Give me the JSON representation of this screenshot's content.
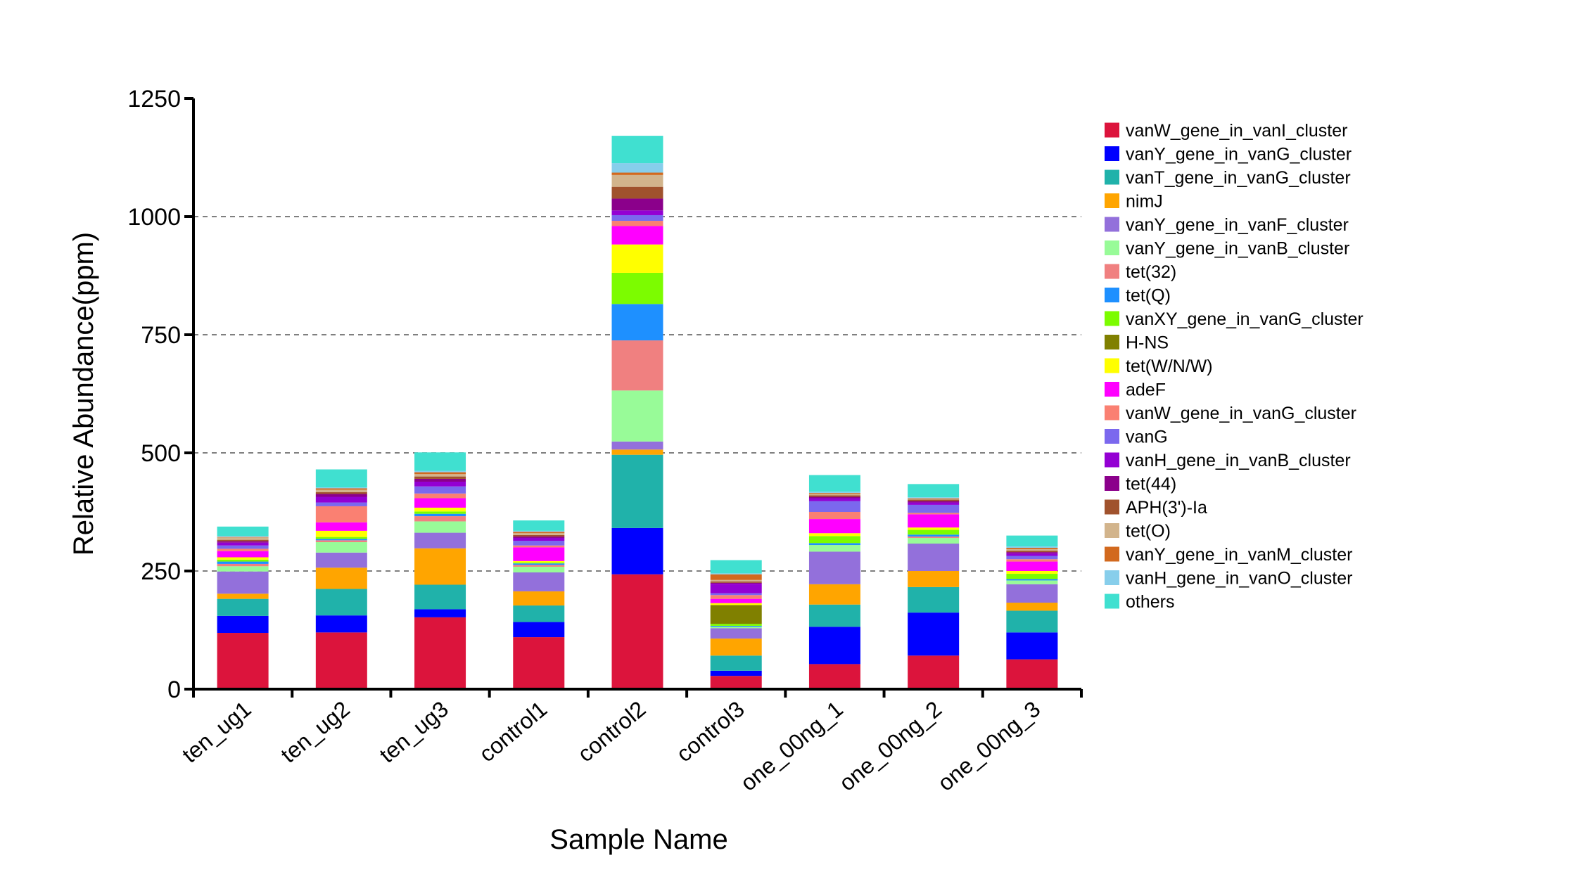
{
  "chart_data": {
    "type": "bar",
    "stacked": true,
    "xlabel": "Sample Name",
    "ylabel": "Relative Abundance(ppm)",
    "ylim": [
      0,
      1250
    ],
    "yticks": [
      0,
      250,
      500,
      750,
      1000,
      1250
    ],
    "yticks_labels": [
      "0",
      "250",
      "500",
      "750",
      "1000",
      "1250"
    ],
    "grid": "dashed horizontal at 250, 500, 750, 1000",
    "legend_position": "right",
    "categories": [
      "ten_ug1",
      "ten_ug2",
      "ten_ug3",
      "control1",
      "control2",
      "control3",
      "one_00ng_1",
      "one_00ng_2",
      "one_00ng_3"
    ],
    "series": [
      {
        "name": "vanW_gene_in_vanI_cluster",
        "color": "#dc143c",
        "values": [
          119,
          120,
          152,
          110,
          243,
          28,
          53,
          71,
          63
        ]
      },
      {
        "name": "vanY_gene_in_vanG_cluster",
        "color": "#0000ff",
        "values": [
          36,
          36,
          17,
          32,
          98,
          11,
          79,
          91,
          57
        ]
      },
      {
        "name": "vanT_gene_in_vanG_cluster",
        "color": "#20b2aa",
        "values": [
          36,
          56,
          52,
          35,
          155,
          32,
          47,
          54,
          46
        ]
      },
      {
        "name": "nimJ",
        "color": "#ffa500",
        "values": [
          11,
          45,
          77,
          30,
          11,
          36,
          43,
          34,
          17
        ]
      },
      {
        "name": "vanY_gene_in_vanF_cluster",
        "color": "#9370db",
        "values": [
          47,
          32,
          33,
          40,
          17,
          22,
          69,
          58,
          39
        ]
      },
      {
        "name": "vanY_gene_in_vanB_cluster",
        "color": "#98fb98",
        "values": [
          11,
          22,
          24,
          12,
          108,
          3,
          14,
          12,
          8
        ]
      },
      {
        "name": "tet(32)",
        "color": "#f08080",
        "values": [
          5,
          4,
          11,
          4,
          106,
          0,
          0,
          3,
          0
        ]
      },
      {
        "name": "tet(Q)",
        "color": "#1e90ff",
        "values": [
          5,
          3,
          5,
          3,
          77,
          2,
          4,
          4,
          3
        ]
      },
      {
        "name": "vanXY_gene_in_vanG_cluster",
        "color": "#7cfc00",
        "values": [
          4,
          4,
          5,
          2,
          66,
          4,
          15,
          10,
          11
        ]
      },
      {
        "name": "H-NS",
        "color": "#808000",
        "values": [
          0,
          0,
          0,
          0,
          0,
          40,
          0,
          0,
          0
        ]
      },
      {
        "name": "tet(W/N/W)",
        "color": "#ffff00",
        "values": [
          5,
          13,
          8,
          3,
          60,
          4,
          6,
          5,
          6
        ]
      },
      {
        "name": "adeF",
        "color": "#ff00ff",
        "values": [
          13,
          18,
          20,
          29,
          39,
          9,
          30,
          28,
          20
        ]
      },
      {
        "name": "vanW_gene_in_vanG_cluster",
        "color": "#fa8072",
        "values": [
          5,
          34,
          10,
          4,
          11,
          8,
          15,
          3,
          5
        ]
      },
      {
        "name": "vanG",
        "color": "#7b68ee",
        "values": [
          7,
          8,
          15,
          10,
          12,
          4,
          23,
          17,
          7
        ]
      },
      {
        "name": "vanH_gene_in_vanB_cluster",
        "color": "#9400d3",
        "values": [
          6,
          12,
          10,
          6,
          10,
          20,
          6,
          5,
          5
        ]
      },
      {
        "name": "tet(44)",
        "color": "#8b008b",
        "values": [
          3,
          6,
          6,
          3,
          25,
          2,
          3,
          3,
          3
        ]
      },
      {
        "name": "APH(3')-Ia",
        "color": "#a0522d",
        "values": [
          3,
          4,
          5,
          3,
          25,
          3,
          3,
          3,
          3
        ]
      },
      {
        "name": "tet(O)",
        "color": "#d2b48c",
        "values": [
          5,
          5,
          5,
          4,
          25,
          3,
          3,
          2,
          3
        ]
      },
      {
        "name": "vanY_gene_in_vanM_cluster",
        "color": "#d2691e",
        "values": [
          1,
          3,
          4,
          3,
          5,
          12,
          2,
          1,
          3
        ]
      },
      {
        "name": "vanH_gene_in_vanO_cluster",
        "color": "#87ceeb",
        "values": [
          2,
          2,
          3,
          2,
          20,
          2,
          3,
          2,
          3
        ]
      },
      {
        "name": "others",
        "color": "#40e0d0",
        "values": [
          20,
          38,
          39,
          22,
          58,
          28,
          35,
          28,
          23
        ]
      }
    ]
  }
}
